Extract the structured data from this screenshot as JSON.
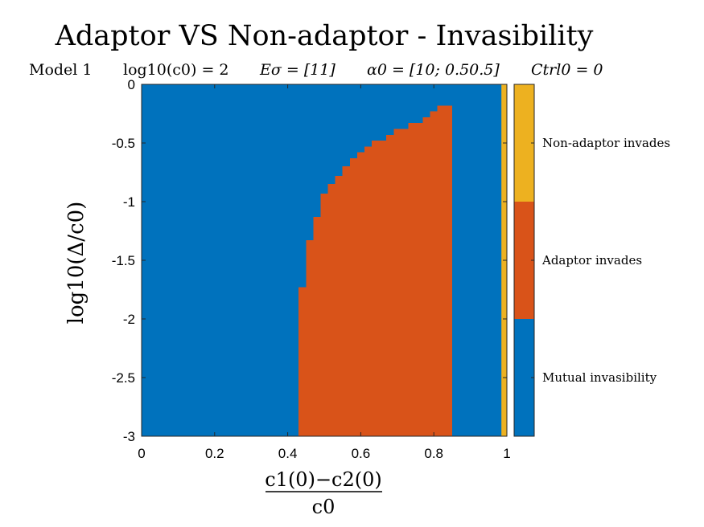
{
  "chart_data": {
    "type": "heatmap",
    "title": "Adaptor VS Non-adaptor - Invasibility",
    "subtitle": {
      "model": "Model 1",
      "log_c0": "log10(c0) = 2",
      "e_sigma": "Eσ = [11]",
      "alpha0": "α0 = [10; 0.50.5]",
      "ctrl0": "Ctrl0 = 0"
    },
    "xlabel": {
      "numerator": "c1(0)−c2(0)",
      "denominator": "c0"
    },
    "ylabel": "log10(Δ/c0)",
    "xlim": [
      0,
      1
    ],
    "ylim": [
      -3,
      0
    ],
    "x_ticks": [
      "0",
      "0.2",
      "0.4",
      "0.6",
      "0.8",
      "1"
    ],
    "y_ticks": [
      "0",
      "-0.5",
      "-1",
      "-1.5",
      "-2",
      "-2.5",
      "-3"
    ],
    "categories": [
      "Mutual invasibility",
      "Adaptor invades",
      "Non-adaptor invades"
    ],
    "colors": {
      "Mutual invasibility": "#0072bd",
      "Adaptor invades": "#d95319",
      "Non-adaptor invades": "#edb120"
    },
    "adaptor_region": {
      "x_right": 0.85,
      "boundary": [
        {
          "x": 0.43,
          "y_top": -1.73
        },
        {
          "x": 0.45,
          "y_top": -1.33
        },
        {
          "x": 0.47,
          "y_top": -1.13
        },
        {
          "x": 0.49,
          "y_top": -0.93
        },
        {
          "x": 0.51,
          "y_top": -0.85
        },
        {
          "x": 0.53,
          "y_top": -0.78
        },
        {
          "x": 0.55,
          "y_top": -0.7
        },
        {
          "x": 0.57,
          "y_top": -0.63
        },
        {
          "x": 0.59,
          "y_top": -0.58
        },
        {
          "x": 0.61,
          "y_top": -0.53
        },
        {
          "x": 0.63,
          "y_top": -0.48
        },
        {
          "x": 0.67,
          "y_top": -0.43
        },
        {
          "x": 0.69,
          "y_top": -0.38
        },
        {
          "x": 0.73,
          "y_top": -0.33
        },
        {
          "x": 0.77,
          "y_top": -0.28
        },
        {
          "x": 0.79,
          "y_top": -0.23
        },
        {
          "x": 0.81,
          "y_top": -0.18
        }
      ]
    },
    "non_adaptor_region": {
      "x_left": 0.985,
      "x_right": 1.0
    }
  }
}
